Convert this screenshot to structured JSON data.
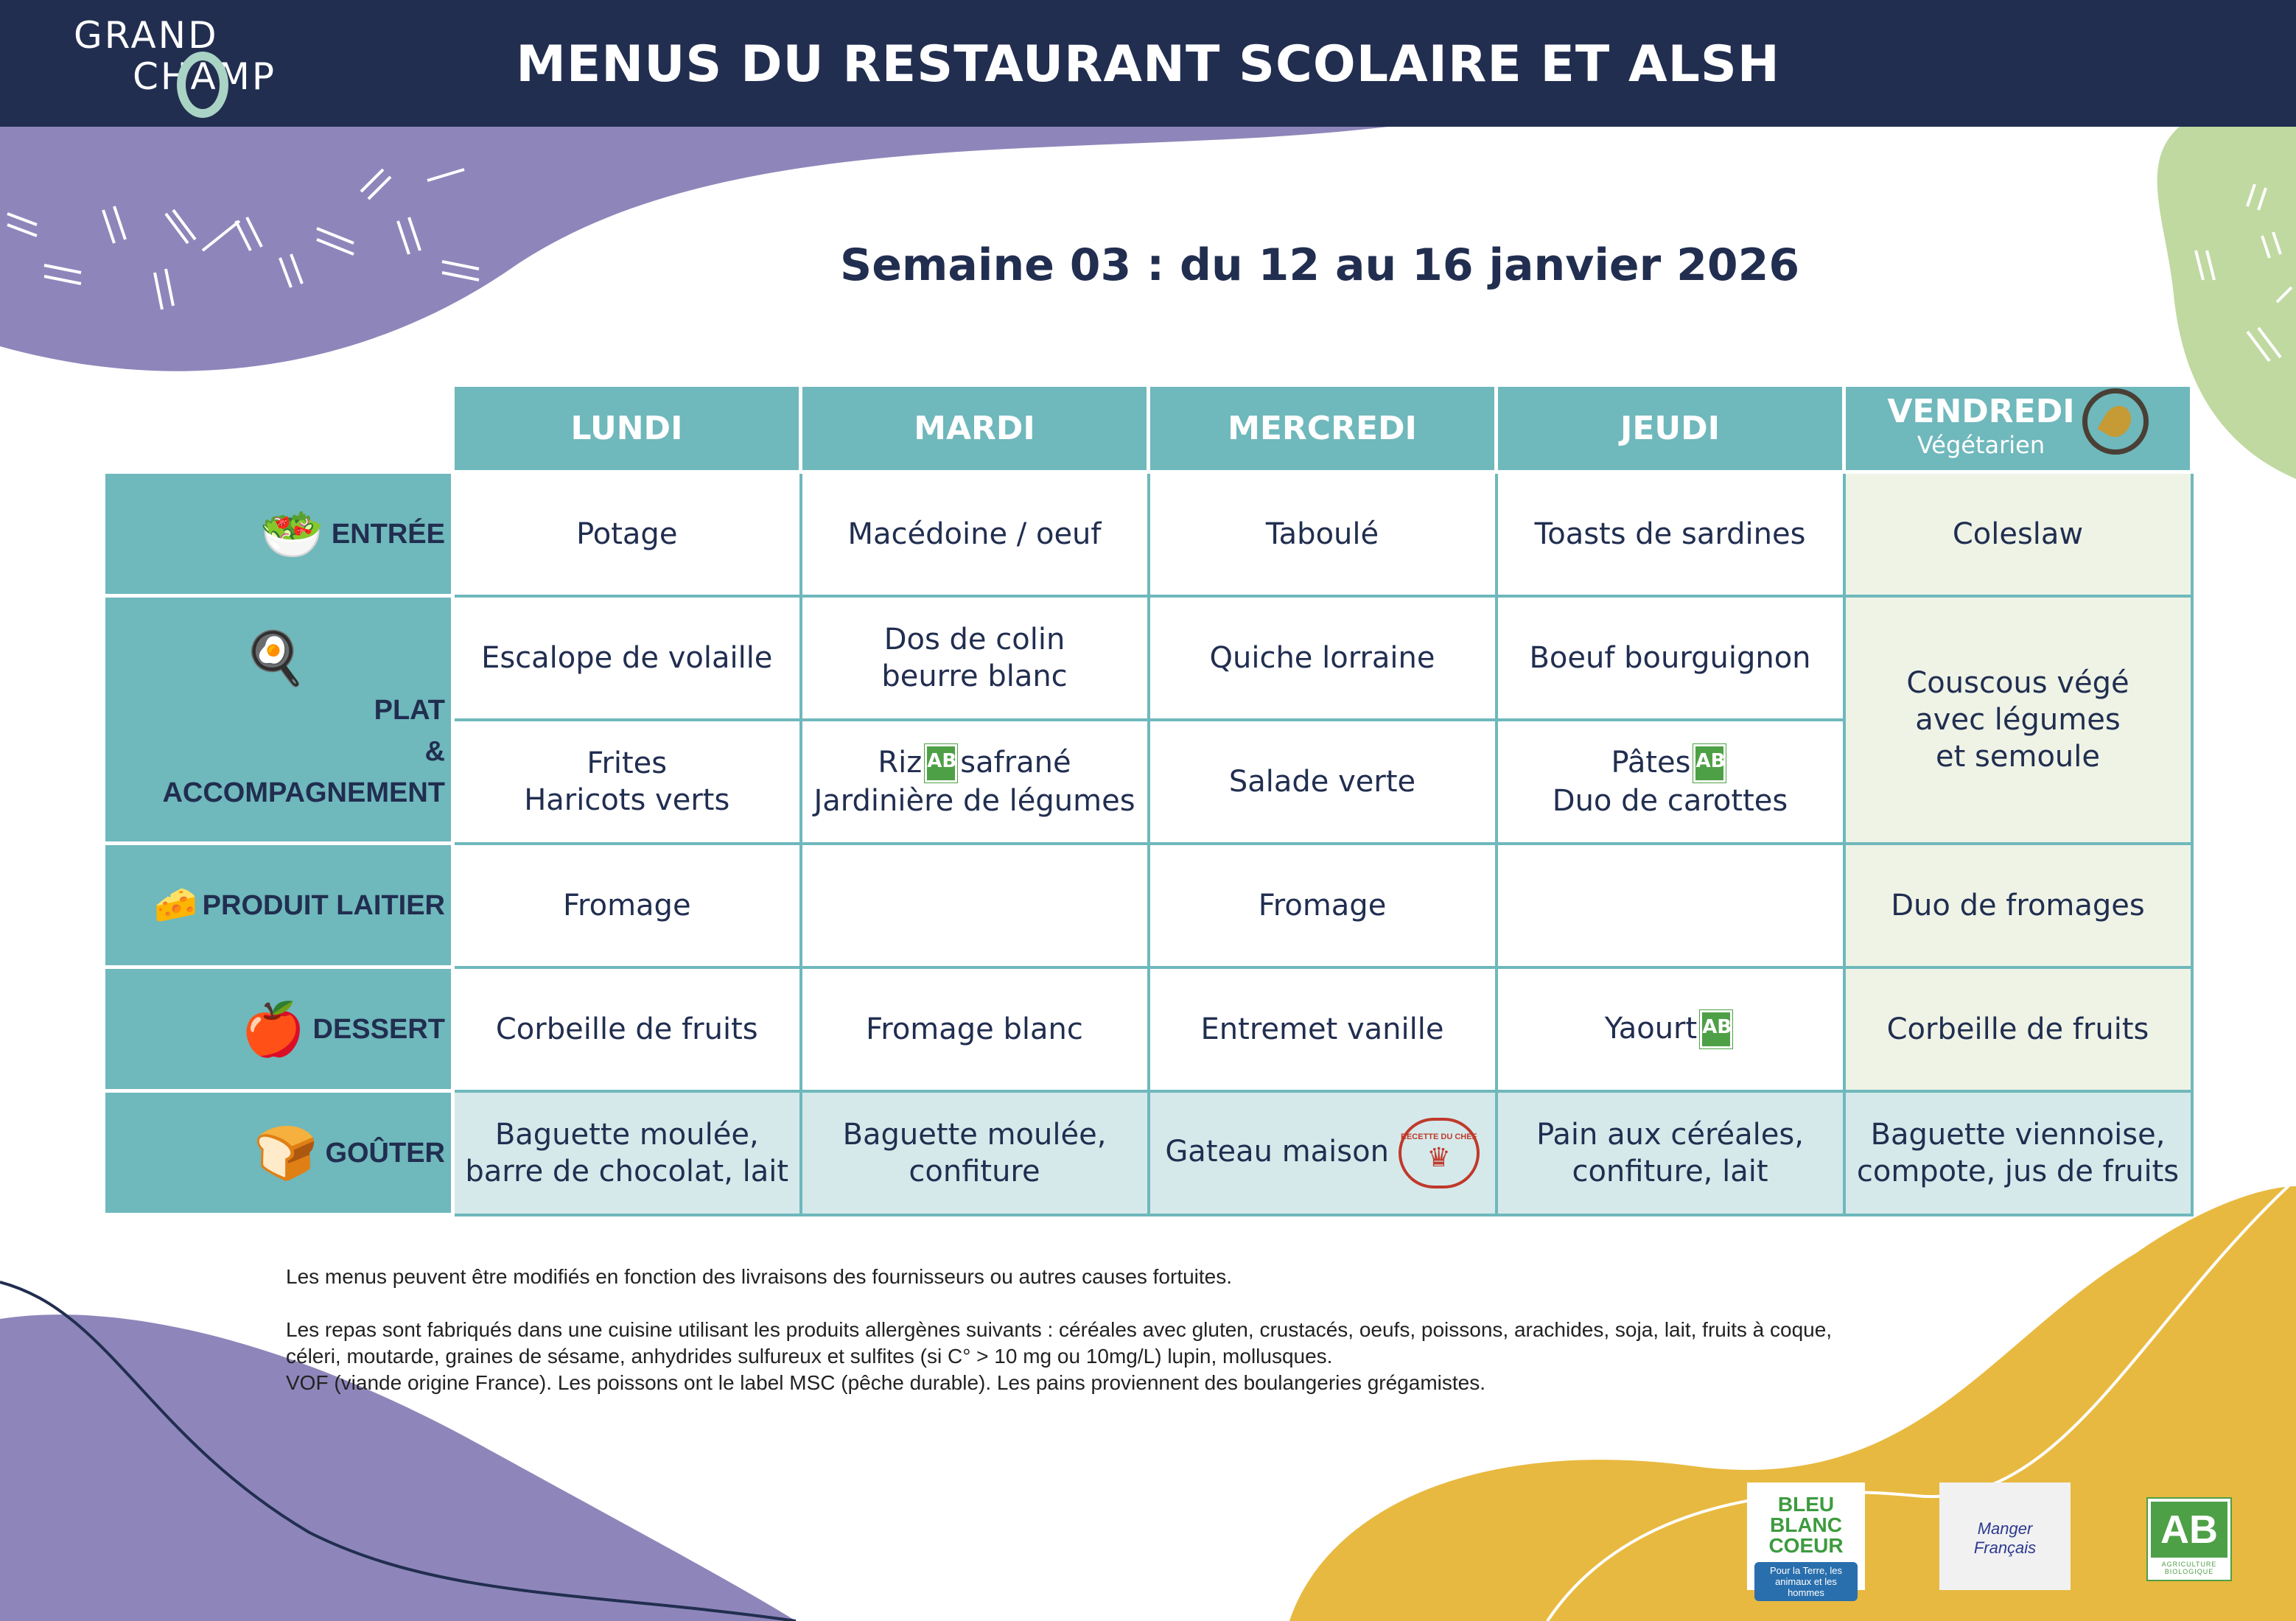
{
  "header": {
    "logo_text": [
      "GRAND",
      "CHAMP"
    ],
    "title": "MENUS DU RESTAURANT SCOLAIRE ET ALSH"
  },
  "week_title": "Semaine 03 : du 12 au 16 janvier 2026",
  "colors": {
    "navy": "#212e50",
    "teal": "#6fb8bc",
    "purple": "#8e86ba",
    "green": "#bfd9a1",
    "yellow": "#e8b940"
  },
  "days": [
    "LUNDI",
    "MARDI",
    "MERCREDI",
    "JEUDI",
    "VENDREDI"
  ],
  "friday_sub": "Végétarien",
  "veg_badge": "VÉGÉTARIEN",
  "rows": {
    "entree": {
      "label": "ENTRÉE",
      "icon": "salad-bowl-icon",
      "cells": [
        "Potage",
        "Macédoine / oeuf",
        "Taboulé",
        "Toasts de sardines",
        "Coleslaw"
      ]
    },
    "plat": {
      "label": [
        "PLAT",
        "&",
        "ACCOMPAGNEMENT"
      ],
      "icon": "plate-egg-icon",
      "main": [
        "Escalope de volaille",
        "Dos de colin\nbeurre blanc",
        "Quiche lorraine",
        "Boeuf bourguignon"
      ],
      "side": [
        "Frites\nHaricots verts",
        "Riz",
        "safrané",
        "Jardinière de légumes",
        "Salade verte",
        "Pâtes",
        "Duo de carottes"
      ],
      "friday": "Couscous végé\navec légumes\net semoule"
    },
    "laitier": {
      "label": "PRODUIT LAITIER",
      "icon": "milk-cheese-icon",
      "cells": [
        "Fromage",
        "",
        "Fromage",
        "",
        "Duo de fromages"
      ]
    },
    "dessert": {
      "label": "DESSERT",
      "icon": "fruits-icon",
      "cells": [
        "Corbeille de fruits",
        "Fromage blanc",
        "Entremet vanille",
        "Yaourt",
        "Corbeille de fruits"
      ]
    },
    "gouter": {
      "label": "GOÛTER",
      "icon": "toast-bread-icon",
      "cells": [
        "Baguette moulée,\nbarre de chocolat, lait",
        "Baguette moulée,\nconfiture",
        "Gateau maison",
        "Pain aux céréales,\nconfiture, lait",
        "Baguette viennoise,\ncompote, jus de fruits"
      ]
    }
  },
  "ab_label": "AB",
  "chef_badge": "RECETTE DU CHEF",
  "notes": [
    "Les menus peuvent être modifiés en fonction des livraisons des fournisseurs ou autres causes fortuites.",
    "Les repas sont fabriqués dans une cuisine utilisant les produits allergènes suivants : céréales avec gluten, crustacés, oeufs, poissons, arachides, soja, lait, fruits à coque, céleri, moutarde, graines de sésame, anhydrides sulfureux et sulfites (si C° > 10 mg ou 10mg/L) lupin, mollusques.",
    "VOF (viande origine France). Les poissons ont le label MSC (pêche durable). Les pains proviennent des boulangeries grégamistes."
  ],
  "labels": {
    "bbc": "BLEU BLANC COEUR",
    "bbc_sub": "Pour la Terre, les animaux et les hommes",
    "mf": "Manger Français",
    "ab": "AB",
    "ab_sub": "AGRICULTURE BIOLOGIQUE"
  }
}
